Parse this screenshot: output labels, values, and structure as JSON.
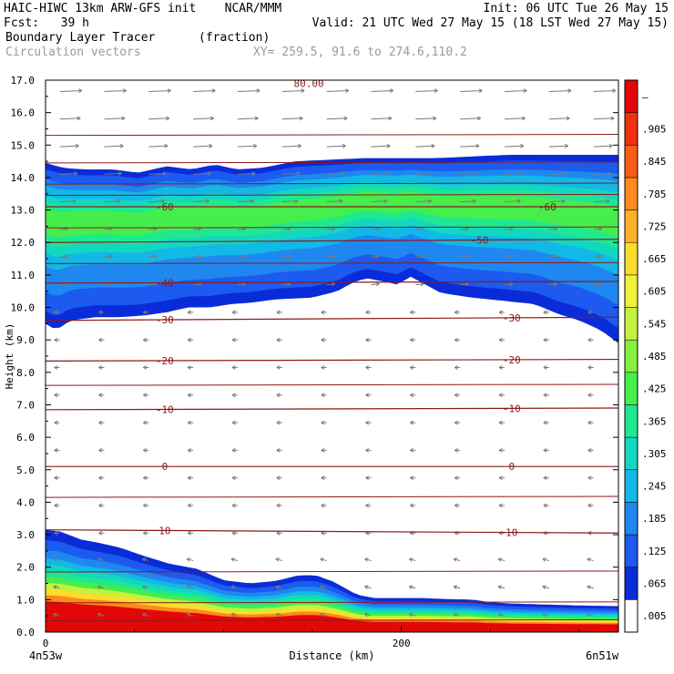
{
  "header": {
    "model_line": "HAIC-HIWC 13km ARW-GFS init    NCAR/MMM",
    "init_line": "Init: 06 UTC Tue 26 May 15",
    "fcst_label": "Fcst:   39 h",
    "valid_line": "Valid: 21 UTC Wed 27 May 15 (18 LST Wed 27 May 15)",
    "field_name": "Boundary Layer Tracer",
    "field_units": "(fraction)",
    "vector_label": "Circulation vectors",
    "xy_label": "XY= 259.5, 91.6 to 274.6,110.2"
  },
  "chart_data": {
    "type": "heatmap",
    "title": "Boundary Layer Tracer",
    "xlabel": "Distance (km)",
    "ylabel": "Height (km)",
    "xlim": [
      0,
      322
    ],
    "ylim": [
      0,
      17
    ],
    "x_ticks": [
      0,
      200
    ],
    "y_ticks": [
      "0.0",
      "1.0",
      "2.0",
      "3.0",
      "4.0",
      "5.0",
      "6.0",
      "7.0",
      "8.0",
      "9.0",
      "10.0",
      "11.0",
      "12.0",
      "13.0",
      "14.0",
      "15.0",
      "16.0",
      "17.0"
    ],
    "x_endpoints": {
      "left": "4n53w",
      "right": "6n51w"
    },
    "colorbar": {
      "labels": [
        ".005",
        ".065",
        ".125",
        ".185",
        ".245",
        ".305",
        ".365",
        ".425",
        ".485",
        ".545",
        ".605",
        ".665",
        ".725",
        ".785",
        ".845",
        ".905",
        "–"
      ],
      "colors": [
        "#ffffff",
        "#0a2cd8",
        "#1c5af0",
        "#1e88f0",
        "#12b8e6",
        "#12d8c0",
        "#1ee890",
        "#46ee4c",
        "#86f03c",
        "#c4f23c",
        "#eef23a",
        "#fcdc2c",
        "#fcb224",
        "#fc8a1e",
        "#f85c16",
        "#f0300e",
        "#e20808"
      ]
    },
    "low_tracer_top_km": [
      [
        0,
        3.15
      ],
      [
        8,
        3.1
      ],
      [
        20,
        2.85
      ],
      [
        30,
        2.75
      ],
      [
        42,
        2.6
      ],
      [
        55,
        2.35
      ],
      [
        70,
        2.1
      ],
      [
        85,
        1.95
      ],
      [
        100,
        1.6
      ],
      [
        115,
        1.5
      ],
      [
        130,
        1.58
      ],
      [
        142,
        1.75
      ],
      [
        152,
        1.75
      ],
      [
        162,
        1.55
      ],
      [
        175,
        1.15
      ],
      [
        185,
        1.05
      ],
      [
        195,
        1.05
      ],
      [
        210,
        1.05
      ],
      [
        225,
        1.02
      ],
      [
        240,
        1.0
      ],
      [
        250,
        0.92
      ],
      [
        262,
        0.88
      ],
      [
        280,
        0.85
      ],
      [
        300,
        0.82
      ],
      [
        322,
        0.8
      ]
    ],
    "upper_tracer_top_km": [
      [
        0,
        14.45
      ],
      [
        10,
        14.3
      ],
      [
        22,
        14.25
      ],
      [
        38,
        14.25
      ],
      [
        52,
        14.15
      ],
      [
        68,
        14.35
      ],
      [
        82,
        14.25
      ],
      [
        95,
        14.4
      ],
      [
        108,
        14.25
      ],
      [
        122,
        14.3
      ],
      [
        140,
        14.5
      ],
      [
        160,
        14.55
      ],
      [
        180,
        14.6
      ],
      [
        200,
        14.6
      ],
      [
        220,
        14.6
      ],
      [
        240,
        14.65
      ],
      [
        260,
        14.7
      ],
      [
        280,
        14.7
      ],
      [
        300,
        14.7
      ],
      [
        322,
        14.7
      ]
    ],
    "upper_tracer_base_km": [
      [
        0,
        9.5
      ],
      [
        6,
        9.3
      ],
      [
        14,
        9.6
      ],
      [
        28,
        9.7
      ],
      [
        42,
        9.7
      ],
      [
        55,
        9.75
      ],
      [
        68,
        9.85
      ],
      [
        80,
        10.0
      ],
      [
        92,
        10.0
      ],
      [
        104,
        10.1
      ],
      [
        116,
        10.15
      ],
      [
        130,
        10.25
      ],
      [
        150,
        10.3
      ],
      [
        164,
        10.5
      ],
      [
        172,
        10.75
      ],
      [
        180,
        10.9
      ],
      [
        190,
        10.8
      ],
      [
        198,
        10.7
      ],
      [
        205,
        10.95
      ],
      [
        212,
        10.75
      ],
      [
        222,
        10.45
      ],
      [
        240,
        10.3
      ],
      [
        258,
        10.2
      ],
      [
        275,
        10.1
      ],
      [
        288,
        9.8
      ],
      [
        300,
        9.6
      ],
      [
        312,
        9.3
      ],
      [
        322,
        8.9
      ]
    ],
    "temperature_isotherms": [
      {
        "label": "10",
        "points": [
          [
            0,
            3.15
          ],
          [
            322,
            3.05
          ]
        ],
        "label_x": [
          67,
          262
        ]
      },
      {
        "label": "0",
        "points": [
          [
            0,
            5.1
          ],
          [
            322,
            5.1
          ]
        ],
        "label_x": [
          67,
          262
        ]
      },
      {
        "label": "-10",
        "points": [
          [
            0,
            6.85
          ],
          [
            322,
            6.9
          ]
        ],
        "label_x": [
          67,
          262
        ]
      },
      {
        "label": "-20",
        "points": [
          [
            0,
            8.35
          ],
          [
            322,
            8.4
          ]
        ],
        "label_x": [
          67,
          262
        ]
      },
      {
        "label": "-30",
        "points": [
          [
            0,
            9.6
          ],
          [
            322,
            9.7
          ]
        ],
        "label_x": [
          67,
          262
        ]
      },
      {
        "label": "-40",
        "points": [
          [
            0,
            10.75
          ],
          [
            322,
            10.8
          ]
        ],
        "label_x": [
          67,
          null
        ]
      },
      {
        "label": "-50",
        "points": [
          [
            0,
            12.0
          ],
          [
            322,
            12.1
          ]
        ],
        "label_x": [
          null,
          244
        ]
      },
      {
        "label": "-60",
        "points": [
          [
            0,
            13.1
          ],
          [
            322,
            13.1
          ]
        ],
        "label_x": [
          67,
          282
        ]
      }
    ],
    "extra_isotherms_km": [
      0.35,
      0.9,
      1.85,
      4.15,
      7.6,
      11.35,
      12.45,
      13.45,
      13.8,
      14.45,
      15.3
    ],
    "top_label": "80.00"
  }
}
